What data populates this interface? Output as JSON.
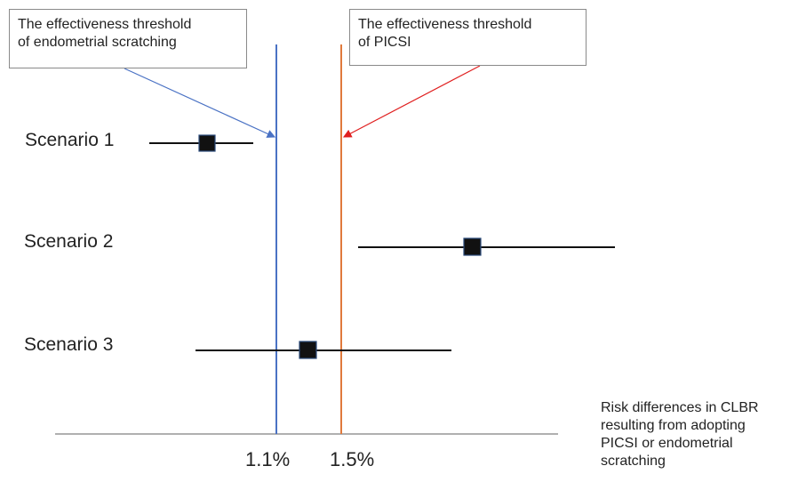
{
  "callouts": {
    "scratching": "The effectiveness threshold\nof endometrial scratching",
    "picsi": "The effectiveness threshold\nof PICSI"
  },
  "scenarios": [
    {
      "label": "Scenario 1"
    },
    {
      "label": "Scenario 2"
    },
    {
      "label": "Scenario 3"
    }
  ],
  "axis": {
    "tick_labels": [
      "1.1%",
      "1.5%"
    ],
    "label": "Risk differences in CLBR\nresulting from adopting\nPICSI or endometrial\nscratching"
  },
  "colors": {
    "scratching_threshold": "#4a72c4",
    "picsi_threshold": "#e07a3c",
    "arrow_scratching": "#4a72c4",
    "arrow_picsi": "#e02020",
    "marker": "#111111",
    "marker_stroke": "#2a4a7a"
  }
}
